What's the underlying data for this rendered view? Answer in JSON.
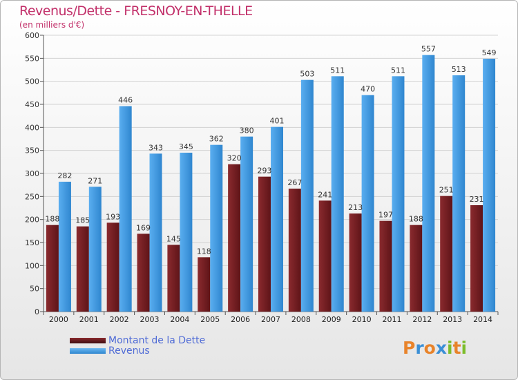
{
  "chart_data": {
    "type": "bar",
    "title": "Revenus/Dette - FRESNOY-EN-THELLE",
    "subtitle": "(en milliers d'€)",
    "categories": [
      "2000",
      "2001",
      "2002",
      "2003",
      "2004",
      "2005",
      "2006",
      "2007",
      "2008",
      "2009",
      "2010",
      "2011",
      "2012",
      "2013",
      "2014"
    ],
    "series": [
      {
        "name": "Montant de la Dette",
        "color": "#7d1f24",
        "values": [
          188,
          185,
          193,
          169,
          145,
          118,
          320,
          293,
          267,
          241,
          213,
          197,
          188,
          251,
          231
        ]
      },
      {
        "name": "Revenus",
        "color": "#4b9fe0",
        "values": [
          282,
          271,
          446,
          343,
          345,
          362,
          380,
          401,
          503,
          511,
          470,
          511,
          557,
          513,
          549
        ]
      }
    ],
    "yticks": [
      0,
      50,
      100,
      150,
      200,
      250,
      300,
      350,
      400,
      450,
      500,
      550,
      600
    ],
    "ylim": [
      0,
      600
    ],
    "grid": true,
    "legend_position": "bottom-left"
  },
  "logo": {
    "letters": [
      "P",
      "r",
      "o",
      "x",
      "i",
      "t",
      "i"
    ],
    "colors": [
      "#e8832a",
      "#3a8fd6",
      "#e8832a",
      "#3a8fd6",
      "#7cbd2b",
      "#e8832a",
      "#7cbd2b"
    ]
  }
}
